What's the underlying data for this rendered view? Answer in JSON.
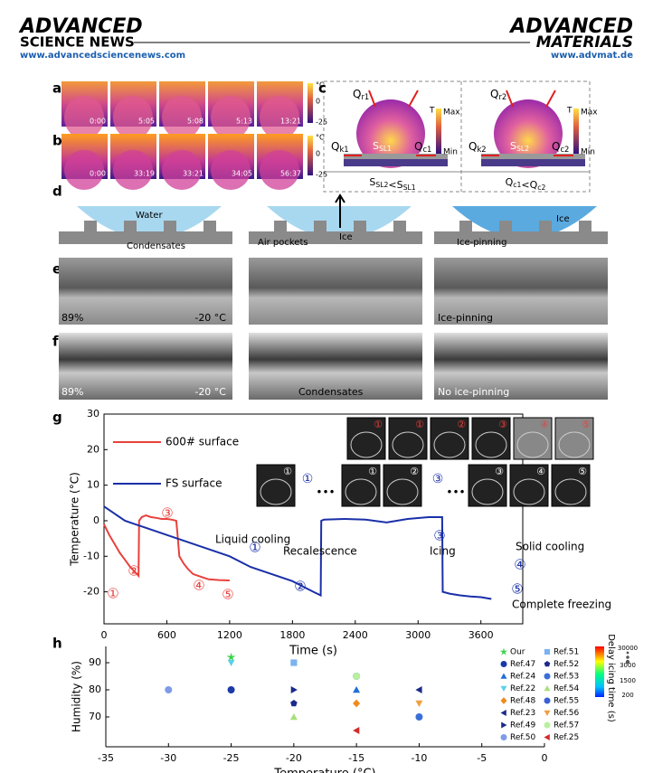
{
  "header": {
    "left_logo_1": "ADVANCED",
    "left_logo_2": "SCIENCE NEWS",
    "left_url": "www.advancedsciencenews.com",
    "right_logo_1": "ADVANCED",
    "right_logo_2": "MATERIALS",
    "right_url": "www.advmat.de"
  },
  "panel_labels": [
    "a",
    "b",
    "c",
    "d",
    "e",
    "f",
    "g",
    "h"
  ],
  "panel_a": {
    "times": [
      "0:00",
      "5:05",
      "5:08",
      "5:13",
      "13:21"
    ],
    "scale": [
      "°C",
      "0",
      "-25"
    ]
  },
  "panel_b": {
    "times": [
      "0:00",
      "33:19",
      "33:21",
      "34:05",
      "56:37"
    ],
    "scale": [
      "°C",
      "0",
      "-25"
    ]
  },
  "panel_c": {
    "left": {
      "qr": {
        "main": "Q",
        "sub": "r1"
      },
      "qk": {
        "main": "Q",
        "sub": "k1"
      },
      "ssl": {
        "main": "S",
        "sub": "SL1"
      },
      "qc": {
        "main": "Q",
        "sub": "c1"
      },
      "t": "T",
      "max": "Max",
      "min": "Min"
    },
    "right": {
      "qr": {
        "main": "Q",
        "sub": "r2"
      },
      "qk": {
        "main": "Q",
        "sub": "k2"
      },
      "ssl": {
        "main": "S",
        "sub": "SL2"
      },
      "qc": {
        "main": "Q",
        "sub": "c2"
      },
      "t": "T",
      "max": "Max",
      "min": "Min"
    },
    "compare_left": [
      {
        "main": "S",
        "sub": "SL2"
      },
      {
        "main": "<S",
        "sub": "SL1"
      }
    ],
    "compare_right": [
      {
        "main": "Q",
        "sub": "c1"
      },
      {
        "main": "<Q",
        "sub": "c2"
      }
    ]
  },
  "panel_d": {
    "water": "Water",
    "condensates": "Condensates",
    "air_pockets": "Air pockets",
    "ice_middle": "Ice",
    "ice_pinning": "Ice-pinning",
    "ice_right": "Ice"
  },
  "panel_e": {
    "humidity": "89%",
    "temperature": "-20 °C",
    "ice_pinning": "Ice-pinning"
  },
  "panel_f": {
    "humidity": "89%",
    "temperature": "-20 °C",
    "condensates": "Condensates",
    "no_ice_pinning": "No ice-pinning"
  },
  "chart_data": [
    {
      "type": "line",
      "xlabel": "Time (s)",
      "ylabel": "Temperature (°C)",
      "xlim": [
        0,
        4000
      ],
      "ylim": [
        -29,
        30
      ],
      "xticks": [
        0,
        600,
        1200,
        1800,
        2400,
        3000,
        3600
      ],
      "yticks": [
        30,
        20,
        10,
        0,
        -10,
        -20
      ],
      "series": [
        {
          "name": "600# surface",
          "color": "#e8413c",
          "x": [
            0,
            50,
            100,
            150,
            200,
            250,
            300,
            330,
            335,
            360,
            400,
            450,
            500,
            550,
            600,
            650,
            690,
            700,
            720,
            760,
            800,
            850,
            900,
            950,
            1000,
            1100,
            1200
          ],
          "values": [
            -1,
            -4,
            -6.5,
            -9,
            -11,
            -13,
            -14.5,
            -15.5,
            0,
            1,
            1.5,
            1,
            0.8,
            0.5,
            0.5,
            0.3,
            0,
            -3,
            -10,
            -12,
            -13.5,
            -15,
            -15.5,
            -16,
            -16.5,
            -16.7,
            -16.8
          ]
        },
        {
          "name": "FS surface",
          "color": "#1a2fa8",
          "x": [
            0,
            100,
            200,
            300,
            400,
            600,
            800,
            1000,
            1200,
            1400,
            1600,
            1800,
            2000,
            2070,
            2075,
            2100,
            2300,
            2500,
            2700,
            2900,
            3100,
            3200,
            3230,
            3235,
            3300,
            3400,
            3500,
            3600,
            3700
          ],
          "values": [
            4,
            2,
            0,
            -1,
            -2,
            -4,
            -6,
            -8,
            -10,
            -13,
            -15,
            -17,
            -20,
            -21,
            0,
            0.3,
            0.5,
            0.3,
            -0.5,
            0.5,
            1,
            1,
            1,
            -20,
            -20.5,
            -21,
            -21.3,
            -21.5,
            -22
          ]
        }
      ],
      "annotations": [
        "Liquid cooling",
        "Recalescence",
        "Icing",
        "Solid cooling",
        "Complete freezing"
      ],
      "red_markers": [
        "①",
        "②",
        "③",
        "④",
        "⑤"
      ],
      "blue_markers": [
        "①",
        "②",
        "③",
        "④",
        "⑤"
      ],
      "insets": {
        "row1": [
          "①",
          "①",
          "②",
          "③",
          "④",
          "⑤"
        ],
        "row2_images": [
          "①",
          "①",
          "②",
          "③",
          "④",
          "⑤"
        ],
        "row2_markers": [
          "①",
          "③"
        ],
        "dots": "•••"
      }
    },
    {
      "type": "scatter",
      "xlabel": "Temperature (°C)",
      "ylabel": "Humidity (%)",
      "xlim": [
        -35,
        0
      ],
      "ylim": [
        59,
        96
      ],
      "xticks": [
        -35,
        -30,
        -25,
        -20,
        -15,
        -10,
        -5,
        0
      ],
      "yticks": [
        70,
        80,
        90
      ],
      "series": [
        {
          "name": "Our",
          "color": "#3cd34a",
          "marker": "star",
          "x": [
            -25
          ],
          "values": [
            92
          ]
        },
        {
          "name": "Ref.47",
          "color": "#1b3aa8",
          "marker": "circle",
          "x": [
            -25
          ],
          "values": [
            80
          ]
        },
        {
          "name": "Ref.24",
          "color": "#1f6fd8",
          "marker": "triangle-up",
          "x": [
            -15
          ],
          "values": [
            80
          ]
        },
        {
          "name": "Ref.22",
          "color": "#5bd1e8",
          "marker": "triangle-down",
          "x": [
            -25
          ],
          "values": [
            90
          ]
        },
        {
          "name": "Ref.48",
          "color": "#f08a1c",
          "marker": "diamond",
          "x": [
            -15
          ],
          "values": [
            75
          ]
        },
        {
          "name": "Ref.23",
          "color": "#1b2a8a",
          "marker": "triangle-left",
          "x": [
            -10
          ],
          "values": [
            80
          ]
        },
        {
          "name": "Ref.49",
          "color": "#1b2a8a",
          "marker": "triangle-right",
          "x": [
            -20
          ],
          "values": [
            80
          ]
        },
        {
          "name": "Ref.50",
          "color": "#7f9be8",
          "marker": "circle",
          "x": [
            -30
          ],
          "values": [
            80
          ]
        },
        {
          "name": "Ref.51",
          "color": "#7bb3f0",
          "marker": "square",
          "x": [
            -20
          ],
          "values": [
            90
          ]
        },
        {
          "name": "Ref.52",
          "color": "#1b2a8a",
          "marker": "pentagon",
          "x": [
            -20
          ],
          "values": [
            75
          ]
        },
        {
          "name": "Ref.53",
          "color": "#3a6fd8",
          "marker": "circle",
          "x": [
            -10
          ],
          "values": [
            70
          ]
        },
        {
          "name": "Ref.54",
          "color": "#a8e07a",
          "marker": "triangle-up",
          "x": [
            -20
          ],
          "values": [
            70
          ]
        },
        {
          "name": "Ref.55",
          "color": "#3a5fd8",
          "marker": "circle",
          "x": [
            -15
          ],
          "values": [
            85
          ]
        },
        {
          "name": "Ref.56",
          "color": "#f0a040",
          "marker": "triangle-down",
          "x": [
            -10
          ],
          "values": [
            75
          ]
        },
        {
          "name": "Ref.57",
          "color": "#b8f0a0",
          "marker": "circle",
          "x": [
            -15
          ],
          "values": [
            85
          ]
        },
        {
          "name": "Ref.25",
          "color": "#d42a2a",
          "marker": "triangle-left",
          "x": [
            -15
          ],
          "values": [
            65
          ]
        }
      ],
      "colorbar": {
        "label": "Delay icing time (s)",
        "ticks": [
          30000,
          3000,
          1500,
          200
        ]
      }
    }
  ]
}
